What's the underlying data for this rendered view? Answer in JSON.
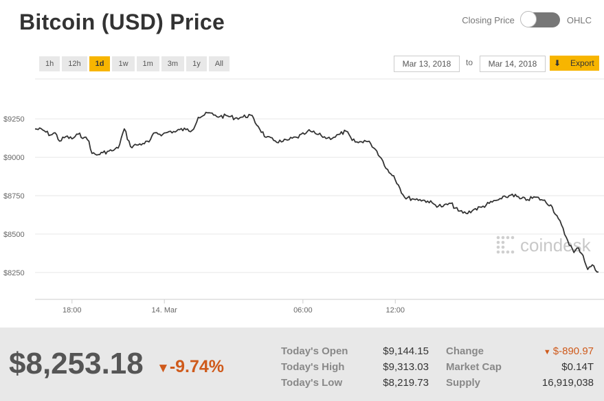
{
  "header": {
    "title": "Bitcoin (USD) Price"
  },
  "toggle": {
    "left_label": "Closing Price",
    "right_label": "OHLC"
  },
  "ranges": [
    "1h",
    "12h",
    "1d",
    "1w",
    "1m",
    "3m",
    "1y",
    "All"
  ],
  "active_range": "1d",
  "date_range": {
    "from": "Mar 13, 2018",
    "to_label": "to",
    "to": "Mar 14, 2018"
  },
  "export_label": "Export",
  "watermark": "coindesk",
  "chart_data": {
    "type": "line",
    "title": "Bitcoin (USD) Price",
    "xlabel": "",
    "ylabel": "",
    "x_tick_labels": [
      "18:00",
      "14. Mar",
      "06:00",
      "12:00"
    ],
    "y_tick_labels": [
      "$9250",
      "$9000",
      "$8750",
      "$8500",
      "$8250"
    ],
    "y_ticks": [
      9250,
      9000,
      8750,
      8500,
      8250
    ],
    "ylim": [
      8075,
      9510
    ],
    "grid": true,
    "series": [
      {
        "x_hours": [
          0,
          0.5,
          1,
          1.3,
          1.6,
          2,
          2.4,
          2.8,
          3.2,
          3.5,
          3.7,
          4,
          4.4,
          4.8,
          5.1,
          5.4,
          5.8,
          6.2,
          6.6,
          7,
          7.4,
          7.8,
          8.3,
          8.8,
          9.1,
          9.4,
          9.8,
          10.2,
          10.6,
          11,
          11.3,
          11.6,
          12,
          12.5,
          13,
          13.5,
          14,
          14.5,
          15,
          15.5,
          16,
          16.5,
          17,
          17.5,
          17.7,
          18,
          18.3,
          18.6,
          19,
          19.4,
          19.8,
          20.2,
          20.6,
          21,
          21.4,
          21.8,
          22.2,
          22.6,
          23,
          23.3,
          23.6,
          24,
          24.5,
          25,
          25.5,
          26,
          26.5,
          27,
          27.5,
          28,
          28.5,
          29,
          29.5,
          30,
          30.3,
          30.6,
          31,
          31.5,
          32,
          32.5,
          33,
          33.5,
          34,
          34.5,
          35,
          35.3,
          35.6,
          35.9,
          36.2,
          36.4,
          36.6
        ],
        "values": [
          9185,
          9178,
          9145,
          9160,
          9105,
          9135,
          9120,
          9150,
          9130,
          9105,
          9025,
          9015,
          9030,
          9040,
          9045,
          9060,
          9185,
          9070,
          9080,
          9090,
          9100,
          9160,
          9150,
          9170,
          9165,
          9180,
          9180,
          9175,
          9260,
          9275,
          9290,
          9275,
          9265,
          9270,
          9255,
          9262,
          9275,
          9200,
          9130,
          9110,
          9100,
          9115,
          9130,
          9150,
          9170,
          9165,
          9150,
          9140,
          9125,
          9130,
          9150,
          9170,
          9110,
          9095,
          9110,
          9090,
          9040,
          8975,
          8900,
          8880,
          8820,
          8740,
          8730,
          8725,
          8715,
          8690,
          8680,
          8700,
          8650,
          8635,
          8660,
          8675,
          8700,
          8720,
          8730,
          8740,
          8760,
          8730,
          8725,
          8740,
          8720,
          8690,
          8600,
          8480,
          8380,
          8410,
          8360,
          8270,
          8300,
          8265,
          8253
        ]
      }
    ]
  },
  "stats": {
    "price": "$8,253.18",
    "change_pct": "-9.74%",
    "open_label": "Today's Open",
    "open": "$9,144.15",
    "high_label": "Today's High",
    "high": "$9,313.03",
    "low_label": "Today's Low",
    "low": "$8,219.73",
    "change_label": "Change",
    "change": "$-890.97",
    "mcap_label": "Market Cap",
    "mcap": "$0.14T",
    "supply_label": "Supply",
    "supply": "16,919,038"
  },
  "colors": {
    "accent": "#f7b500",
    "negative": "#cf5a1b",
    "line": "#333333"
  }
}
